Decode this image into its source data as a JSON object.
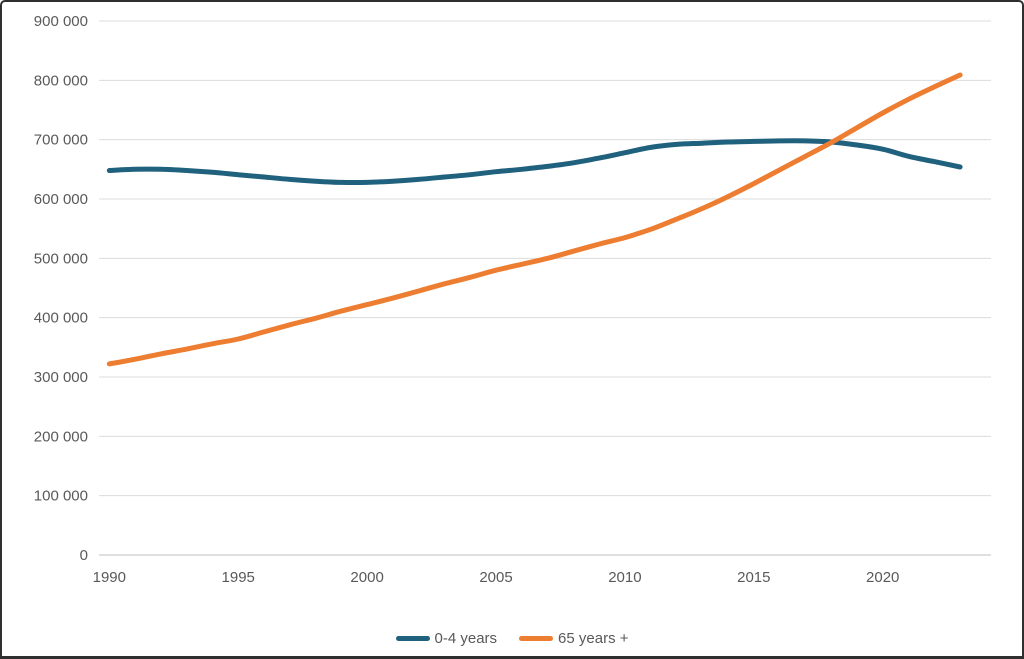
{
  "frame": {
    "background": "#ffffff",
    "border_color": "#2f2f2f"
  },
  "chart_data": {
    "type": "line",
    "title": "",
    "xlabel": "",
    "ylabel": "",
    "grid": true,
    "gridline_color": "#dcdcdc",
    "axis_line_color": "#bfbfbf",
    "tick_label_color": "#595959",
    "legend_position": "bottom",
    "xlim": [
      1989.6,
      2024.2
    ],
    "ylim": [
      0,
      900000
    ],
    "xticks": [
      1990,
      1995,
      2000,
      2005,
      2010,
      2015,
      2020
    ],
    "xtick_labels": [
      "1990",
      "1995",
      "2000",
      "2005",
      "2010",
      "2015",
      "2020"
    ],
    "yticks": [
      0,
      100000,
      200000,
      300000,
      400000,
      500000,
      600000,
      700000,
      800000,
      900000
    ],
    "ytick_labels": [
      "0",
      "100 000",
      "200 000",
      "300 000",
      "400 000",
      "500 000",
      "600 000",
      "700 000",
      "800 000",
      "900 000"
    ],
    "x": [
      1990,
      1991,
      1992,
      1993,
      1994,
      1995,
      1996,
      1997,
      1998,
      1999,
      2000,
      2001,
      2002,
      2003,
      2004,
      2005,
      2006,
      2007,
      2008,
      2009,
      2010,
      2011,
      2012,
      2013,
      2014,
      2015,
      2016,
      2017,
      2018,
      2019,
      2020,
      2021,
      2022,
      2023
    ],
    "series": [
      {
        "name": "0-4 years",
        "color": "#20617d",
        "stroke_width": 5,
        "values": [
          648000,
          650000,
          650000,
          648000,
          645000,
          641000,
          637000,
          633000,
          630000,
          628000,
          628000,
          630000,
          633000,
          637000,
          641000,
          646000,
          650000,
          655000,
          661000,
          669000,
          678000,
          687000,
          692000,
          694000,
          696000,
          697000,
          698000,
          698000,
          696000,
          691000,
          684000,
          672000,
          663000,
          654000
        ]
      },
      {
        "name": "65 years +",
        "color": "#ed7d31",
        "stroke_width": 5,
        "values": [
          322000,
          330000,
          339000,
          347000,
          356000,
          364000,
          376000,
          388000,
          399000,
          411000,
          422000,
          433000,
          445000,
          457000,
          468000,
          480000,
          490000,
          500000,
          512000,
          524000,
          535000,
          549000,
          566000,
          584000,
          604000,
          626000,
          649000,
          672000,
          695000,
          720000,
          745000,
          768000,
          789000,
          809000
        ]
      }
    ]
  }
}
